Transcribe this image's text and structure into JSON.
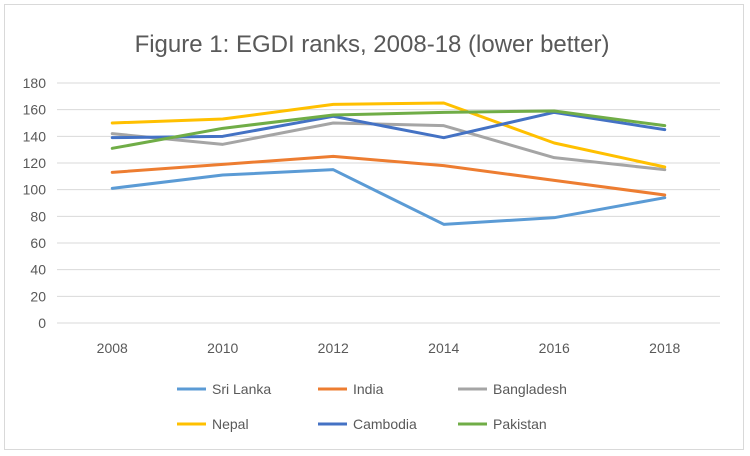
{
  "chart_data": {
    "type": "line",
    "title": "Figure 1: EGDI ranks,  2008-18 (lower better)",
    "xlabel": "",
    "ylabel": "",
    "categories": [
      "2008",
      "2010",
      "2012",
      "2014",
      "2016",
      "2018"
    ],
    "ylim": [
      0,
      180
    ],
    "yticks": [
      0,
      20,
      40,
      60,
      80,
      100,
      120,
      140,
      160,
      180
    ],
    "grid": true,
    "legend_position": "bottom",
    "series": [
      {
        "name": "Sri Lanka",
        "color": "#5b9bd5",
        "values": [
          101,
          111,
          115,
          74,
          79,
          94
        ]
      },
      {
        "name": "India",
        "color": "#ed7d31",
        "values": [
          113,
          119,
          125,
          118,
          107,
          96
        ]
      },
      {
        "name": "Bangladesh",
        "color": "#a5a5a5",
        "values": [
          142,
          134,
          150,
          148,
          124,
          115
        ]
      },
      {
        "name": "Nepal",
        "color": "#ffc000",
        "values": [
          150,
          153,
          164,
          165,
          135,
          117
        ]
      },
      {
        "name": "Cambodia",
        "color": "#4472c4",
        "values": [
          139,
          140,
          155,
          139,
          158,
          145
        ]
      },
      {
        "name": "Pakistan",
        "color": "#70ad47",
        "values": [
          131,
          146,
          156,
          158,
          159,
          148
        ]
      }
    ]
  }
}
